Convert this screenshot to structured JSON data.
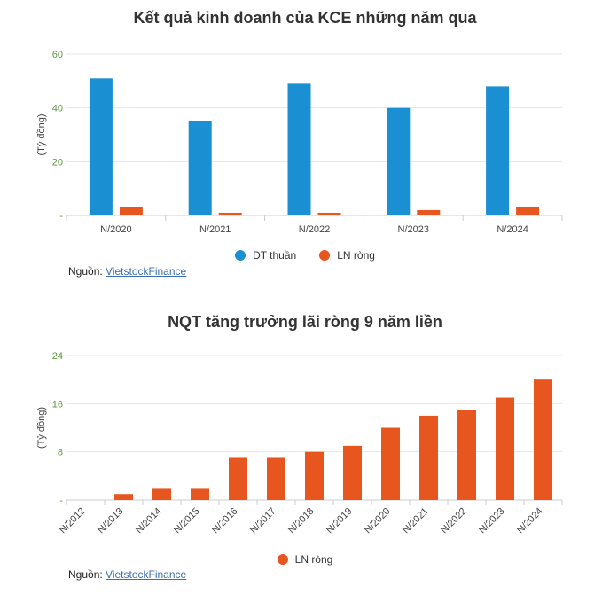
{
  "chart_data": [
    {
      "type": "bar",
      "title": "Kết quả kinh doanh của KCE những năm qua",
      "ylabel": "(Tỷ đồng)",
      "xlabel": "",
      "ylim": [
        0,
        60
      ],
      "yticks": [
        "-",
        "20",
        "40",
        "60"
      ],
      "categories": [
        "N/2020",
        "N/2021",
        "N/2022",
        "N/2023",
        "N/2024"
      ],
      "series": [
        {
          "name": "DT thuần",
          "color": "#1a8fd1",
          "values": [
            51,
            35,
            49,
            40,
            48
          ]
        },
        {
          "name": "LN ròng",
          "color": "#e8561f",
          "values": [
            3,
            1,
            1,
            2,
            3
          ]
        }
      ],
      "grid": true,
      "legend": "bottom"
    },
    {
      "type": "bar",
      "title": "NQT tăng trưởng lãi ròng 9 năm liền",
      "ylabel": "(Tỷ đồng)",
      "xlabel": "",
      "ylim": [
        0,
        24
      ],
      "yticks": [
        "-",
        "8",
        "16",
        "24"
      ],
      "categories": [
        "N/2012",
        "N/2013",
        "N/2014",
        "N/2015",
        "N/2016",
        "N/2017",
        "N/2018",
        "N/2019",
        "N/2020",
        "N/2021",
        "N/2022",
        "N/2023",
        "N/2024"
      ],
      "series": [
        {
          "name": "LN ròng",
          "color": "#e8561f",
          "values": [
            0,
            1,
            2,
            2,
            7,
            7,
            8,
            9,
            12,
            14,
            15,
            17,
            20
          ]
        }
      ],
      "grid": true,
      "legend": "bottom"
    }
  ],
  "source": {
    "label": "Nguồn:",
    "link_text": "VietstockFinance"
  },
  "colors": {
    "axis_tick_text": "#5a9a3c",
    "grid": "#e6e6e6"
  }
}
